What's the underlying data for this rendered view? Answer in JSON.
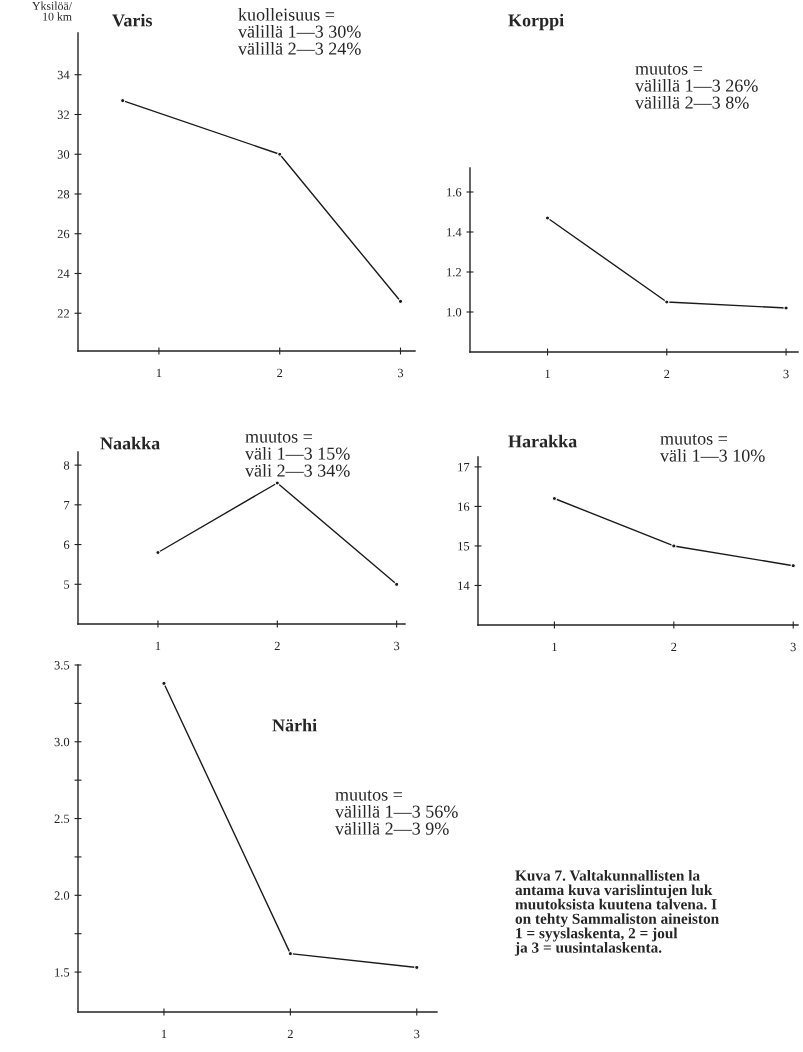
{
  "chart_data": [
    {
      "type": "line",
      "title": "Varis",
      "ylabel": "Yksilöä/\n10 km",
      "annotations": [
        "kuolleisuus =\nvälillä 1—3 30%\nvälillä 2—3 24%"
      ],
      "series": [
        {
          "color": "#1a1a1a",
          "x": [
            0.7,
            2,
            3
          ],
          "values": [
            32.7,
            30.0,
            22.6
          ]
        }
      ],
      "xlim": [
        0.33,
        3.12
      ],
      "xticks": [
        1,
        2,
        3
      ],
      "ylim": [
        20.1,
        36.1
      ],
      "yticks": [
        22,
        24,
        26,
        28,
        30,
        32,
        34
      ],
      "marker": "circle",
      "line_style": "solid",
      "grid": false,
      "legend": false
    },
    {
      "type": "line",
      "title": "Korppi",
      "annotations": [
        "muutos =\nvälillä 1—3 26%\nvälillä 2—3 8%"
      ],
      "series": [
        {
          "color": "#1a1a1a",
          "x": [
            1,
            2,
            3
          ],
          "values": [
            1.47,
            1.05,
            1.02
          ]
        }
      ],
      "xlim": [
        0.35,
        3.1
      ],
      "xticks": [
        1,
        2,
        3
      ],
      "ylim": [
        0.8,
        1.72
      ],
      "yticks": [
        {
          "value": 1.0,
          "label": "1.0"
        },
        1.2,
        1.4,
        1.6
      ],
      "marker": "circle",
      "line_style": "solid",
      "grid": false,
      "legend": false
    },
    {
      "type": "line",
      "title": "Naakka",
      "annotations": [
        "muutos =\nväli 1—3 15%\nväli 2—3 34%"
      ],
      "series": [
        {
          "color": "#1a1a1a",
          "x": [
            1,
            2,
            3
          ],
          "values": [
            5.8,
            7.55,
            5.0
          ]
        }
      ],
      "xlim": [
        0.33,
        3.07
      ],
      "xticks": [
        1,
        2,
        3
      ],
      "ylim": [
        4.0,
        8.33
      ],
      "yticks": [
        5,
        6,
        7,
        8
      ],
      "marker": "circle",
      "line_style": "solid",
      "grid": false,
      "legend": false
    },
    {
      "type": "line",
      "title": "Harakka",
      "annotations": [
        "muutos =\nväli 1—3 10%"
      ],
      "series": [
        {
          "color": "#1a1a1a",
          "x": [
            1,
            2,
            3
          ],
          "values": [
            16.2,
            15.0,
            14.5
          ]
        }
      ],
      "xlim": [
        0.36,
        3.04
      ],
      "xticks": [
        1,
        2,
        3
      ],
      "ylim": [
        13.0,
        17.25
      ],
      "yticks": [
        14,
        15,
        16,
        17
      ],
      "marker": "circle",
      "line_style": "solid",
      "grid": false,
      "legend": false
    },
    {
      "type": "line",
      "title": "Närhi",
      "annotations": [
        "muutos =\nvälillä 1—3 56%\nvälillä 2—3 9%",
        "Kuva 7. Valtakunnallisten la\nantama kuva varislintujen luk\nmuutoksista kuutena talvena. I\non tehty Sammaliston aineiston\n1 = syyslaskenta, 2 = joul\nja 3 = uusintalaskenta."
      ],
      "series": [
        {
          "color": "#1a1a1a",
          "x": [
            1,
            2,
            3
          ],
          "values": [
            3.38,
            1.62,
            1.53
          ]
        }
      ],
      "xlim": [
        0.32,
        3.16
      ],
      "xticks": [
        1,
        2,
        3
      ],
      "ylim": [
        1.24,
        3.5
      ],
      "yticks": [
        {
          "value": 1.5,
          "label": "1.5"
        },
        {
          "value": 1.75,
          "label": null
        },
        {
          "value": 2.0,
          "label": "2.0"
        },
        {
          "value": 2.25,
          "label": null
        },
        {
          "value": 2.5,
          "label": "2.5"
        },
        {
          "value": 2.75,
          "label": null
        },
        {
          "value": 3.0,
          "label": "3.0"
        },
        {
          "value": 3.25,
          "label": null
        },
        {
          "value": 3.5,
          "label": "3.5"
        }
      ],
      "marker": "circle",
      "line_style": "solid",
      "grid": false,
      "legend": false
    }
  ]
}
